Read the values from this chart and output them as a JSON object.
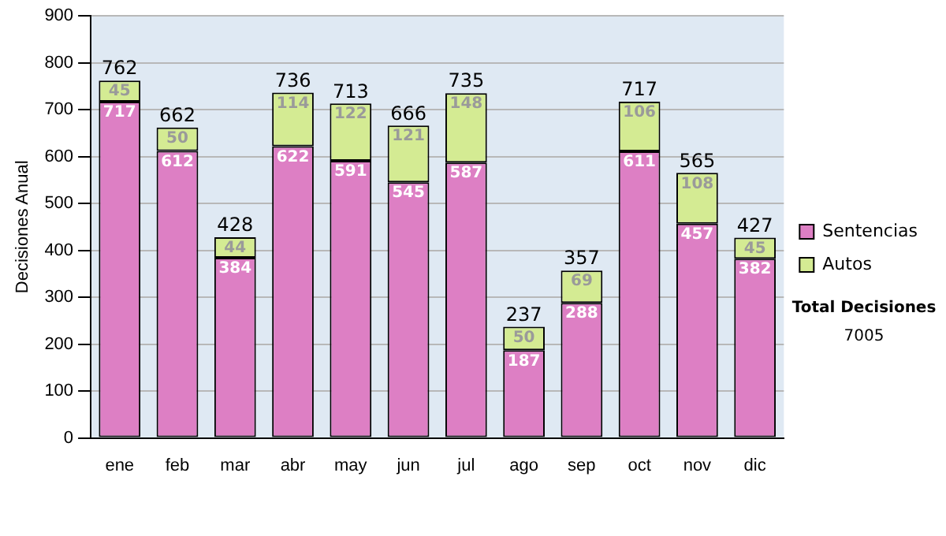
{
  "chart_data": {
    "type": "bar",
    "stacked": true,
    "ylabel": "Decisiones Anual",
    "categories": [
      "ene",
      "feb",
      "mar",
      "abr",
      "may",
      "jun",
      "jul",
      "ago",
      "sep",
      "oct",
      "nov",
      "dic"
    ],
    "series": [
      {
        "name": "Sentencias",
        "color": "#dd7fc4",
        "values": [
          717,
          612,
          384,
          622,
          591,
          545,
          587,
          187,
          288,
          611,
          457,
          382
        ]
      },
      {
        "name": "Autos",
        "color": "#d4eb93",
        "values": [
          45,
          50,
          44,
          114,
          122,
          121,
          148,
          50,
          69,
          106,
          108,
          45
        ]
      }
    ],
    "totals": [
      "762",
      "662",
      "428",
      "736",
      "713",
      "666",
      "735",
      "237",
      "357",
      "717",
      "565",
      "427"
    ],
    "data_labels": true,
    "ylim": [
      0,
      900
    ],
    "yticks": [
      0,
      100,
      200,
      300,
      400,
      500,
      600,
      700,
      800,
      900
    ],
    "grid": "y",
    "legend": "right",
    "annotations": [
      "Total Decisiones",
      "7005"
    ]
  }
}
